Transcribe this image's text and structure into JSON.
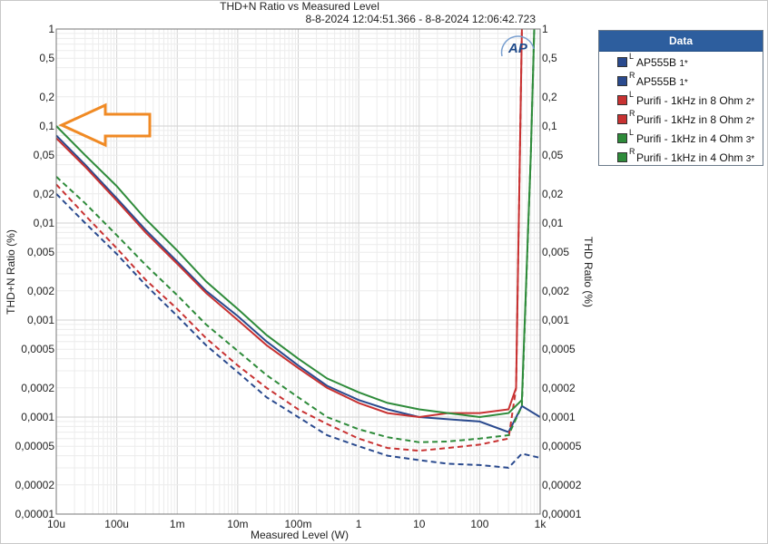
{
  "chart_data": {
    "type": "line",
    "title": "THD+N Ratio vs Measured Level",
    "subtitle": "8-8-2024 12:04:51.366 - 8-8-2024 12:06:42.723",
    "xlabel": "Measured Level (W)",
    "ylabel": "THD+N Ratio (%)",
    "y2label": "THD Ratio (%)",
    "xscale": "log",
    "yscale": "log",
    "xlim": [
      1e-05,
      1000
    ],
    "ylim": [
      1e-05,
      1
    ],
    "x_tick_labels": [
      "10u",
      "100u",
      "1m",
      "10m",
      "100m",
      "1",
      "10",
      "100",
      "1k"
    ],
    "y_tick_labels": [
      "0,00001",
      "0,00002",
      "0,00005",
      "0,0001",
      "0,0002",
      "0,0005",
      "0,001",
      "0,002",
      "0,005",
      "0,01",
      "0,02",
      "0,05",
      "0,1",
      "0,2",
      "0,5",
      "1"
    ],
    "grid": true,
    "legend_title": "Data",
    "legend_position": "right",
    "series": [
      {
        "name": "AP555B",
        "channel": "L",
        "suffix": "1*",
        "color": "#2a4a8e",
        "dash": false,
        "x": [
          1e-05,
          3e-05,
          0.0001,
          0.0003,
          0.001,
          0.003,
          0.01,
          0.03,
          0.1,
          0.3,
          1,
          3,
          10,
          30,
          100,
          300,
          500,
          1000
        ],
        "y": [
          0.08,
          0.04,
          0.018,
          0.0085,
          0.004,
          0.002,
          0.0011,
          0.0006,
          0.00034,
          0.00021,
          0.00015,
          0.00012,
          0.0001,
          9.5e-05,
          9e-05,
          7e-05,
          0.00013,
          0.0001
        ]
      },
      {
        "name": "AP555B",
        "channel": "R",
        "suffix": "1*",
        "color": "#2a4a8e",
        "dash": true,
        "x": [
          1e-05,
          3e-05,
          0.0001,
          0.0003,
          0.001,
          0.003,
          0.01,
          0.03,
          0.1,
          0.3,
          1,
          3,
          10,
          30,
          100,
          300,
          500,
          1000
        ],
        "y": [
          0.02,
          0.01,
          0.0048,
          0.0023,
          0.0011,
          0.00055,
          0.00029,
          0.00016,
          0.0001,
          6.5e-05,
          5e-05,
          4e-05,
          3.6e-05,
          3.3e-05,
          3.2e-05,
          3e-05,
          4.2e-05,
          3.8e-05
        ]
      },
      {
        "name": "Purifi - 1kHz in 8 Ohm",
        "channel": "L",
        "suffix": "2*",
        "color": "#c83232",
        "dash": false,
        "x": [
          1e-05,
          3e-05,
          0.0001,
          0.0003,
          0.001,
          0.003,
          0.01,
          0.03,
          0.1,
          0.3,
          1,
          3,
          10,
          30,
          100,
          300,
          400,
          500
        ],
        "y": [
          0.075,
          0.038,
          0.017,
          0.008,
          0.0038,
          0.0019,
          0.001,
          0.00055,
          0.00032,
          0.0002,
          0.00014,
          0.00011,
          0.0001,
          0.00011,
          0.00011,
          0.00012,
          0.0002,
          1
        ]
      },
      {
        "name": "Purifi - 1kHz in 8 Ohm",
        "channel": "R",
        "suffix": "2*",
        "color": "#c83232",
        "dash": true,
        "x": [
          1e-05,
          3e-05,
          0.0001,
          0.0003,
          0.001,
          0.003,
          0.01,
          0.03,
          0.1,
          0.3,
          1,
          3,
          10,
          30,
          100,
          300,
          400,
          500
        ],
        "y": [
          0.025,
          0.012,
          0.0055,
          0.0026,
          0.0013,
          0.00065,
          0.00034,
          0.0002,
          0.00012,
          8.5e-05,
          6e-05,
          4.8e-05,
          4.5e-05,
          4.8e-05,
          5.2e-05,
          6e-05,
          0.0002,
          1
        ]
      },
      {
        "name": "Purifi - 1kHz in 4 Ohm",
        "channel": "L",
        "suffix": "3*",
        "color": "#2e8b3a",
        "dash": false,
        "x": [
          1e-05,
          3e-05,
          0.0001,
          0.0003,
          0.001,
          0.003,
          0.01,
          0.03,
          0.1,
          0.3,
          1,
          3,
          10,
          30,
          100,
          300,
          500,
          700,
          800
        ],
        "y": [
          0.1,
          0.05,
          0.024,
          0.011,
          0.0052,
          0.0025,
          0.0013,
          0.0007,
          0.0004,
          0.00025,
          0.00018,
          0.00014,
          0.00012,
          0.00011,
          0.0001,
          0.00011,
          0.00015,
          0.05,
          1
        ]
      },
      {
        "name": "Purifi - 1kHz in 4 Ohm",
        "channel": "R",
        "suffix": "3*",
        "color": "#2e8b3a",
        "dash": true,
        "x": [
          1e-05,
          3e-05,
          0.0001,
          0.0003,
          0.001,
          0.003,
          0.01,
          0.03,
          0.1,
          0.3,
          1,
          3,
          10,
          30,
          100,
          300,
          500,
          700,
          800
        ],
        "y": [
          0.03,
          0.016,
          0.0075,
          0.0037,
          0.0018,
          0.0009,
          0.00048,
          0.00027,
          0.00016,
          0.0001,
          7.5e-05,
          6.2e-05,
          5.5e-05,
          5.6e-05,
          6e-05,
          6.5e-05,
          0.00013,
          0.05,
          1
        ]
      }
    ]
  },
  "logo_text": "AP",
  "annotation": "orange arrow pointing left at 0,1 level"
}
